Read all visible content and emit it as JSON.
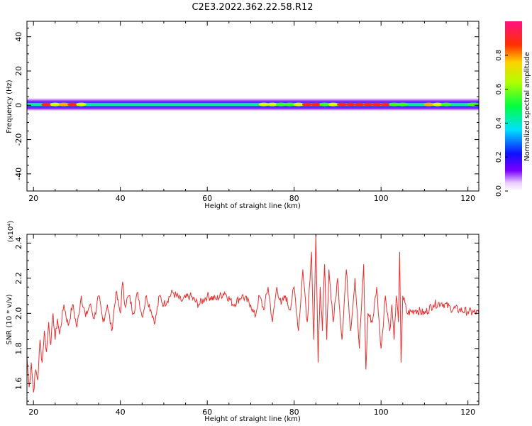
{
  "chart_data": [
    {
      "type": "heatmap",
      "title": "C2E3.2022.362.22.58.R12",
      "xlabel": "Height of straight line (km)",
      "ylabel": "Frequency (Hz)",
      "xlim": [
        18.5,
        122.5
      ],
      "ylim": [
        -50,
        49
      ],
      "xticks": [
        20,
        40,
        60,
        80,
        100,
        120
      ],
      "yticks": [
        -40,
        -20,
        0,
        20,
        40
      ],
      "colorbar": {
        "label": "Normalized spectral amplitude",
        "range": [
          0,
          1
        ],
        "ticks": [
          "0.0",
          "0.2",
          "0.4",
          "0.6",
          "0.8"
        ]
      },
      "band_centre_hz": 0.5,
      "amplitude_profile": {
        "x": [
          18.5,
          20,
          22,
          24,
          26,
          28,
          30,
          32,
          34,
          36,
          38,
          40,
          42,
          44,
          46,
          48,
          50,
          52,
          54,
          56,
          58,
          60,
          62,
          64,
          66,
          68,
          70,
          72,
          74,
          76,
          78,
          80,
          82,
          84,
          86,
          88,
          90,
          92,
          94,
          96,
          98,
          100,
          102,
          104,
          106,
          108,
          110,
          112,
          114,
          116,
          118,
          120,
          122.5
        ],
        "values": [
          0.55,
          0.5,
          0.95,
          0.7,
          0.8,
          0.9,
          0.7,
          0.5,
          0.45,
          0.5,
          0.45,
          0.5,
          0.4,
          0.45,
          0.4,
          0.4,
          0.45,
          0.4,
          0.42,
          0.45,
          0.42,
          0.4,
          0.42,
          0.4,
          0.45,
          0.5,
          0.55,
          0.7,
          0.75,
          0.6,
          0.6,
          0.75,
          0.9,
          0.95,
          0.6,
          0.7,
          0.95,
          1.0,
          1.0,
          1.0,
          0.9,
          0.95,
          0.6,
          0.65,
          0.5,
          0.55,
          0.8,
          0.75,
          0.6,
          0.55,
          0.5,
          0.6,
          0.55
        ]
      }
    },
    {
      "type": "line",
      "ylabel": "SNR (10 * v/v)",
      "xlabel": "Height of straight line (km)",
      "multiplier_label": "(x10⁴)",
      "xlim": [
        18.5,
        122.5
      ],
      "ylim": [
        1.48,
        2.45
      ],
      "xticks": [
        20,
        40,
        60,
        80,
        100,
        120
      ],
      "yticks": [
        "1.6",
        "1.8",
        "2.0",
        "2.2",
        "2.4"
      ],
      "color": "#e83030",
      "series": [
        {
          "x": [
            18.5,
            19,
            19.5,
            20,
            20.5,
            21,
            21.5,
            22,
            22.5,
            23,
            23.5,
            24,
            24.5,
            25,
            25.5,
            26,
            27,
            28,
            29,
            30,
            31,
            32,
            33,
            34,
            35,
            36,
            37,
            38,
            39,
            40,
            40.5,
            41,
            42,
            43,
            44,
            45,
            46,
            47,
            48,
            49,
            50,
            52,
            54,
            56,
            58,
            60,
            62,
            64,
            66,
            68,
            70,
            71,
            72,
            73,
            74,
            75,
            76,
            77,
            78,
            79,
            80,
            81,
            82,
            83,
            84,
            84.5,
            85,
            85.5,
            86,
            86.5,
            87,
            87.5,
            88,
            89,
            90,
            91,
            92,
            93,
            94,
            95,
            96,
            96.5,
            97,
            98,
            99,
            100,
            101,
            102,
            102.5,
            103,
            103.5,
            104,
            104.3,
            104.6,
            105,
            106,
            108,
            110,
            112,
            114,
            116,
            118,
            120,
            122.5
          ],
          "values": [
            1.75,
            1.58,
            1.72,
            1.55,
            1.68,
            1.62,
            1.85,
            1.72,
            1.9,
            1.78,
            1.95,
            1.82,
            2.0,
            1.85,
            1.97,
            1.88,
            2.05,
            1.93,
            2.05,
            1.92,
            2.1,
            1.98,
            2.05,
            1.97,
            2.1,
            1.95,
            2.05,
            1.9,
            2.12,
            2.0,
            2.18,
            2.05,
            2.1,
            2.0,
            2.12,
            1.98,
            2.1,
            2.02,
            1.95,
            2.1,
            2.05,
            2.12,
            2.07,
            2.1,
            2.05,
            2.1,
            2.08,
            2.12,
            2.05,
            2.1,
            2.05,
            1.98,
            2.1,
            2.02,
            2.15,
            1.95,
            2.15,
            2.05,
            2.1,
            2.02,
            2.15,
            1.9,
            2.25,
            1.95,
            2.35,
            1.85,
            2.45,
            1.72,
            2.15,
            1.9,
            2.28,
            1.85,
            2.25,
            1.95,
            2.2,
            1.85,
            2.25,
            1.9,
            2.2,
            1.8,
            2.28,
            1.68,
            2.0,
            1.95,
            2.15,
            1.8,
            2.1,
            1.9,
            2.05,
            1.85,
            2.1,
            1.95,
            2.35,
            1.72,
            2.1,
            2.0,
            2.02,
            2.0,
            2.05,
            2.06,
            2.03,
            2.02,
            2.01,
            2.0
          ]
        }
      ]
    }
  ]
}
